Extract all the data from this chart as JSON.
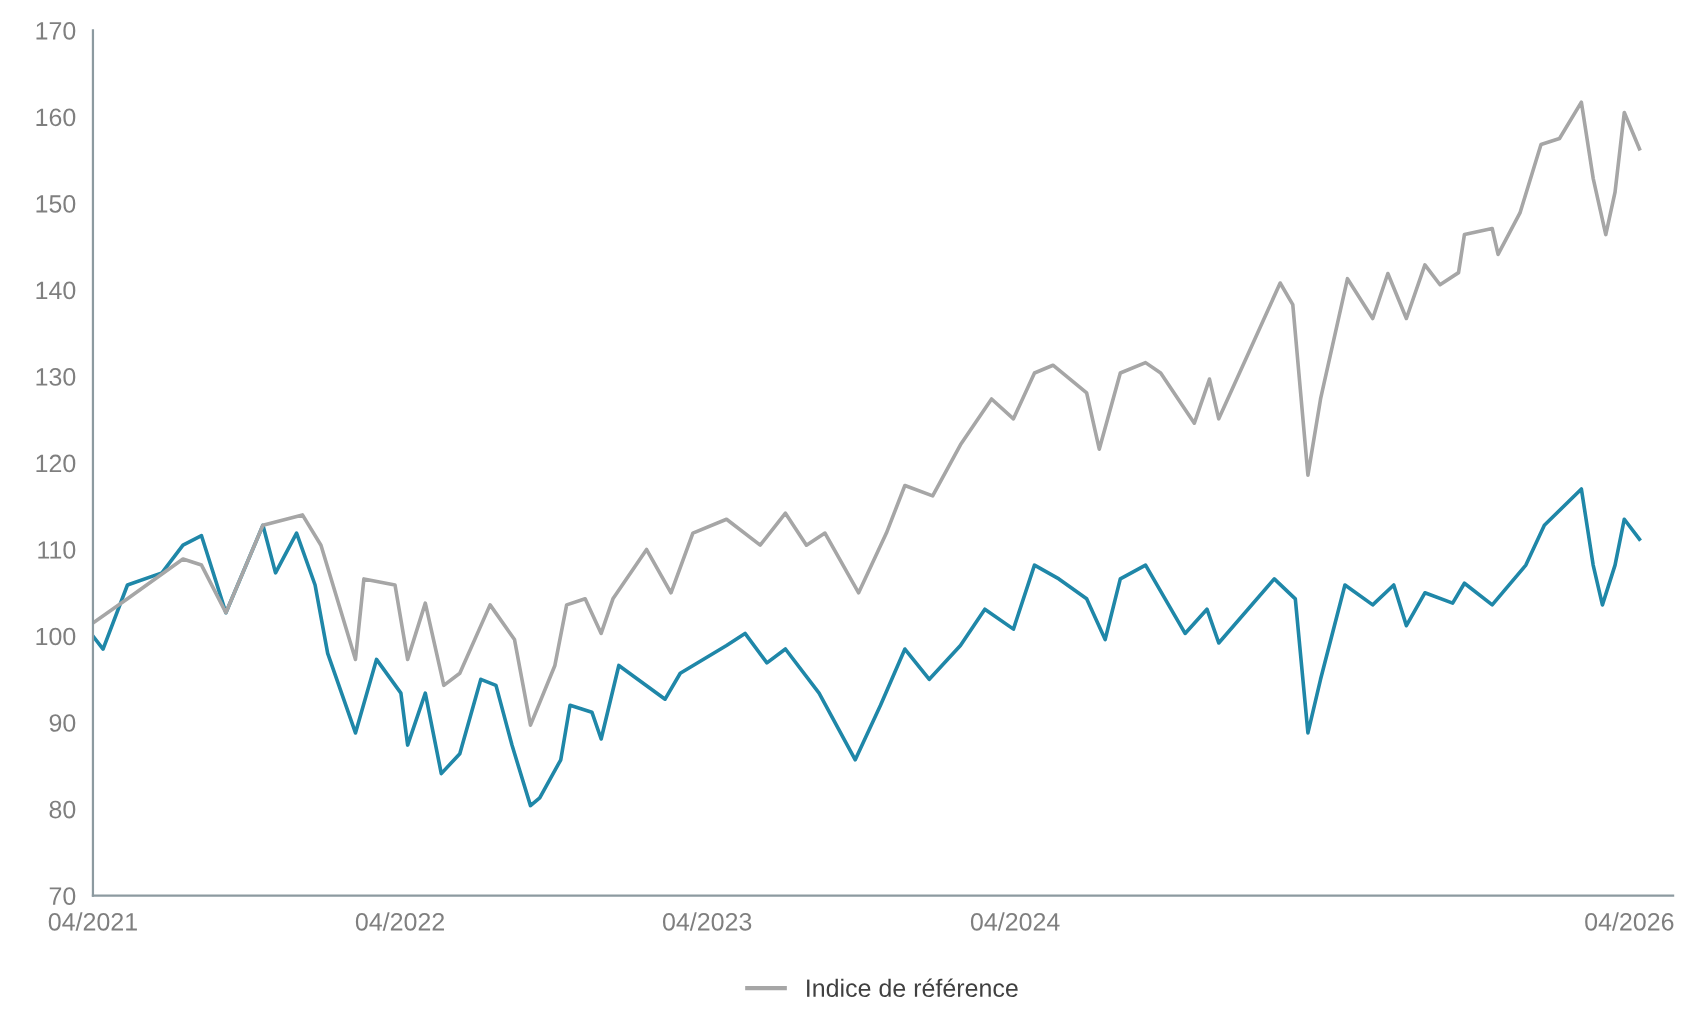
{
  "chart_data": {
    "type": "line",
    "xlim": [
      "2021-04-01",
      "2026-05-23"
    ],
    "xticks": [
      {
        "value": "2021-04-01",
        "label": "04/2021"
      },
      {
        "value": "2022-04-01",
        "label": "04/2022"
      },
      {
        "value": "2023-04-01",
        "label": "04/2023"
      },
      {
        "value": "2024-04-01",
        "label": "04/2024"
      },
      {
        "value": "2026-04-01",
        "label": "04/2026"
      }
    ],
    "ylim": [
      70,
      170
    ],
    "yticks": [
      70,
      80,
      90,
      100,
      110,
      120,
      130,
      140,
      150,
      160,
      170
    ],
    "grid": false,
    "legend": "bottom",
    "marker": "none",
    "line_style": "solid",
    "series": [
      {
        "color": "#1f87a8",
        "x": [
          "2021-04-01",
          "2021-04-13",
          "2021-05-12",
          "2021-06-22",
          "2021-07-17",
          "2021-08-08",
          "2021-09-06",
          "2021-10-20",
          "2021-11-04",
          "2021-11-29",
          "2021-12-21",
          "2022-01-05",
          "2022-02-07",
          "2022-03-04",
          "2022-04-02",
          "2022-04-10",
          "2022-05-01",
          "2022-05-20",
          "2022-06-11",
          "2022-07-06",
          "2022-07-24",
          "2022-08-12",
          "2022-09-03",
          "2022-09-14",
          "2022-10-09",
          "2022-10-20",
          "2022-11-15",
          "2022-11-26",
          "2022-12-17",
          "2023-02-10",
          "2023-02-28",
          "2023-04-24",
          "2023-05-16",
          "2023-06-11",
          "2023-07-03",
          "2023-08-12",
          "2023-09-24",
          "2023-10-24",
          "2023-11-22",
          "2023-12-21",
          "2024-01-27",
          "2024-02-25",
          "2024-03-30",
          "2024-04-24",
          "2024-05-23",
          "2024-06-25",
          "2024-07-17",
          "2024-08-04",
          "2024-09-03",
          "2024-10-20",
          "2024-11-15",
          "2024-11-29",
          "2025-02-03",
          "2025-02-28",
          "2025-03-15",
          "2025-03-30",
          "2025-04-28",
          "2025-05-31",
          "2025-06-25",
          "2025-07-10",
          "2025-08-01",
          "2025-09-03",
          "2025-09-17",
          "2025-10-20",
          "2025-11-29",
          "2025-12-21",
          "2026-02-03",
          "2026-02-17",
          "2026-02-28",
          "2026-03-15",
          "2026-03-26",
          "2026-04-13"
        ],
        "values": [
          100,
          98.5,
          105.9,
          107.3,
          110.5,
          111.6,
          102.7,
          112.8,
          107.3,
          111.9,
          105.9,
          98.0,
          88.8,
          97.3,
          93.4,
          87.4,
          93.4,
          84.1,
          86.4,
          95.0,
          94.3,
          87.4,
          80.4,
          81.3,
          85.7,
          92.0,
          91.2,
          88.1,
          96.6,
          92.7,
          95.7,
          98.9,
          100.3,
          96.9,
          98.5,
          93.4,
          85.7,
          92.0,
          98.5,
          95.0,
          98.9,
          103.1,
          100.8,
          108.2,
          106.6,
          104.3,
          99.6,
          106.6,
          108.2,
          100.3,
          103.1,
          99.2,
          106.6,
          104.3,
          88.8,
          95.0,
          105.9,
          103.6,
          105.9,
          101.2,
          105.0,
          103.8,
          106.1,
          103.6,
          108.2,
          112.8,
          117.0,
          108.2,
          103.6,
          108.2,
          113.5,
          111.2
        ]
      },
      {
        "name": "Indice de référence",
        "color": "#a6a6a6",
        "x": [
          "2021-04-01",
          "2021-05-12",
          "2021-07-17",
          "2021-08-08",
          "2021-09-06",
          "2021-10-20",
          "2021-12-06",
          "2021-12-28",
          "2022-02-07",
          "2022-02-17",
          "2022-03-26",
          "2022-04-10",
          "2022-05-01",
          "2022-05-23",
          "2022-06-11",
          "2022-07-17",
          "2022-08-15",
          "2022-09-03",
          "2022-10-02",
          "2022-10-16",
          "2022-11-07",
          "2022-11-26",
          "2022-12-10",
          "2023-01-19",
          "2023-02-17",
          "2023-03-15",
          "2023-04-24",
          "2023-06-03",
          "2023-07-03",
          "2023-07-28",
          "2023-08-19",
          "2023-09-28",
          "2023-10-31",
          "2023-11-22",
          "2023-12-25",
          "2024-01-27",
          "2024-03-04",
          "2024-03-30",
          "2024-04-24",
          "2024-05-16",
          "2024-06-25",
          "2024-07-10",
          "2024-08-04",
          "2024-09-03",
          "2024-09-21",
          "2024-10-31",
          "2024-11-18",
          "2024-11-29",
          "2025-01-08",
          "2025-02-10",
          "2025-02-25",
          "2025-03-15",
          "2025-03-30",
          "2025-05-01",
          "2025-05-31",
          "2025-06-18",
          "2025-07-10",
          "2025-08-01",
          "2025-08-19",
          "2025-09-10",
          "2025-09-17",
          "2025-10-20",
          "2025-10-27",
          "2025-11-22",
          "2025-12-17",
          "2026-01-08",
          "2026-02-03",
          "2026-02-17",
          "2026-03-04",
          "2026-03-15",
          "2026-03-26",
          "2026-04-13"
        ],
        "values": [
          101.5,
          104.3,
          108.9,
          108.2,
          102.7,
          112.8,
          114.0,
          110.5,
          97.3,
          106.6,
          105.9,
          97.3,
          103.8,
          94.3,
          95.7,
          103.6,
          99.6,
          89.7,
          96.6,
          103.6,
          104.3,
          100.3,
          104.3,
          110.0,
          105.0,
          111.9,
          113.5,
          110.5,
          114.2,
          110.5,
          111.9,
          105.0,
          111.9,
          117.4,
          116.2,
          122.1,
          127.4,
          125.1,
          130.4,
          131.3,
          128.1,
          121.6,
          130.4,
          131.6,
          130.4,
          124.6,
          129.7,
          125.1,
          133.7,
          140.8,
          138.3,
          118.6,
          127.4,
          141.3,
          136.7,
          141.9,
          136.7,
          142.9,
          140.6,
          142.0,
          146.4,
          147.1,
          144.1,
          148.9,
          156.8,
          157.5,
          161.7,
          152.9,
          146.4,
          151.3,
          160.5,
          156.3
        ]
      }
    ]
  }
}
